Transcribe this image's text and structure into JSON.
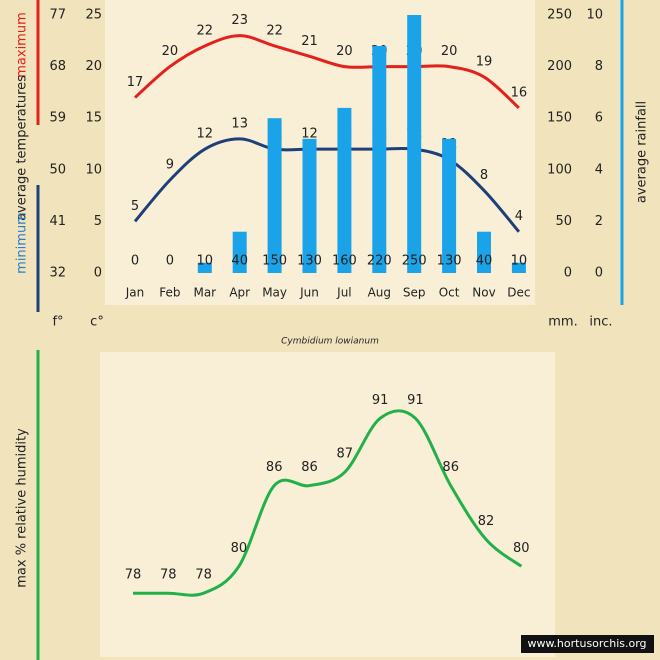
{
  "chart_data": [
    {
      "type": "combo",
      "title": "Cymbidium lowianum",
      "categories": [
        "Jan",
        "Feb",
        "Mar",
        "Apr",
        "May",
        "Jun",
        "Jul",
        "Aug",
        "Sep",
        "Oct",
        "Nov",
        "Dec"
      ],
      "ylim": [
        0,
        25
      ],
      "yticks": [
        0,
        5,
        10,
        15,
        20,
        25
      ],
      "ylim_f": [
        32,
        77
      ],
      "yticks_f": [
        32,
        41,
        50,
        59,
        68,
        77
      ],
      "y2lim": [
        0,
        250
      ],
      "y2ticks": [
        0,
        50,
        100,
        150,
        200,
        250
      ],
      "y3lim": [
        0,
        10
      ],
      "y3ticks": [
        0,
        2,
        4,
        6,
        8,
        10
      ],
      "ylabel": "average temperatures",
      "y2label": "average rainfall",
      "ylabel_f": "f°",
      "ylabel_c": "c°",
      "y2label_mm": "mm.",
      "y2label_in": "inc.",
      "series": [
        {
          "name": "maximum",
          "color": "#e3201b",
          "values": [
            17,
            20,
            22,
            23,
            22,
            21,
            20,
            20,
            20,
            20,
            19,
            16
          ]
        },
        {
          "name": "minimum",
          "color": "#1f3f7a",
          "values": [
            5,
            9,
            12,
            13,
            12,
            12,
            12,
            12,
            12,
            11,
            8,
            4
          ]
        },
        {
          "color": "#1aa3e8",
          "axis": "y2",
          "values": [
            0,
            0,
            10,
            40,
            150,
            130,
            160,
            220,
            250,
            130,
            40,
            10
          ]
        }
      ]
    },
    {
      "type": "line",
      "ylabel": "max % relative humidity",
      "color": "#22b04a",
      "ylim": [
        74,
        94
      ],
      "values": [
        78,
        78,
        78,
        80,
        86,
        86,
        87,
        91,
        91,
        86,
        82,
        80
      ]
    }
  ],
  "footer": "www.hortusorchis.org"
}
